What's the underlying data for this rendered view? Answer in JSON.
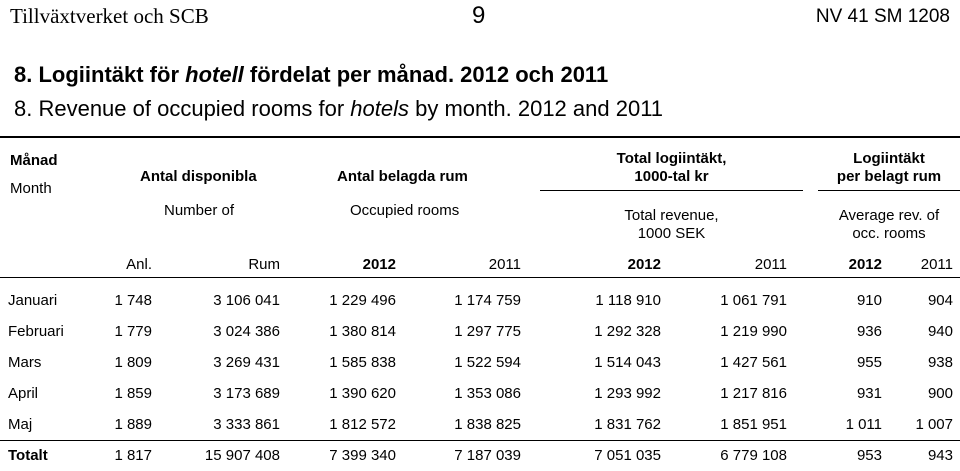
{
  "page_header": {
    "left": "Tillväxtverket och SCB",
    "center": "9",
    "right": "NV 41 SM 1208"
  },
  "title": {
    "sv_prefix": "8. Logiintäkt för ",
    "sv_italic": "hotell",
    "sv_suffix": " fördelat per månad. 2012 och 2011",
    "en_prefix": "8. Revenue of occupied rooms for ",
    "en_italic": "hotels",
    "en_suffix": " by month. 2012 and 2011"
  },
  "table": {
    "headers": {
      "month_sv": "Månad",
      "month_en": "Month",
      "avail_sv": "Antal disponibla",
      "avail_en": "Number of",
      "occupied_sv": "Antal belagda rum",
      "occupied_en": "Occupied rooms",
      "total_sv_1": "Total logiintäkt,",
      "total_sv_2": "1000-tal kr",
      "total_en_1": "Total revenue,",
      "total_en_2": "1000 SEK",
      "perroom_sv_1": "Logiintäkt",
      "perroom_sv_2": "per belagt rum",
      "perroom_en_1": "Average rev. of",
      "perroom_en_2": "occ. rooms"
    },
    "subheaders": [
      "Anl.",
      "Rum",
      "2012",
      "2011",
      "2012",
      "2011",
      "2012",
      "2011"
    ],
    "rows": [
      {
        "month": "Januari",
        "anl": "1 748",
        "rum": "3 106 041",
        "occ2012": "1 229 496",
        "occ2011": "1 174 759",
        "rev2012": "1 118 910",
        "rev2011": "1 061 791",
        "avg2012": "910",
        "avg2011": "904"
      },
      {
        "month": "Februari",
        "anl": "1 779",
        "rum": "3 024 386",
        "occ2012": "1 380 814",
        "occ2011": "1 297 775",
        "rev2012": "1 292 328",
        "rev2011": "1 219 990",
        "avg2012": "936",
        "avg2011": "940"
      },
      {
        "month": "Mars",
        "anl": "1 809",
        "rum": "3 269 431",
        "occ2012": "1 585 838",
        "occ2011": "1 522 594",
        "rev2012": "1 514 043",
        "rev2011": "1 427 561",
        "avg2012": "955",
        "avg2011": "938"
      },
      {
        "month": "April",
        "anl": "1 859",
        "rum": "3 173 689",
        "occ2012": "1 390 620",
        "occ2011": "1 353 086",
        "rev2012": "1 293 992",
        "rev2011": "1 217 816",
        "avg2012": "931",
        "avg2011": "900"
      },
      {
        "month": "Maj",
        "anl": "1 889",
        "rum": "3 333 861",
        "occ2012": "1 812 572",
        "occ2011": "1 838 825",
        "rev2012": "1 831 762",
        "rev2011": "1 851 951",
        "avg2012": "1 011",
        "avg2011": "1 007"
      },
      {
        "month": "Totalt",
        "anl": "1 817",
        "rum": "15 907 408",
        "occ2012": "7 399 340",
        "occ2011": "7 187 039",
        "rev2012": "7 051 035",
        "rev2011": "6 779 108",
        "avg2012": "953",
        "avg2011": "943"
      }
    ]
  }
}
